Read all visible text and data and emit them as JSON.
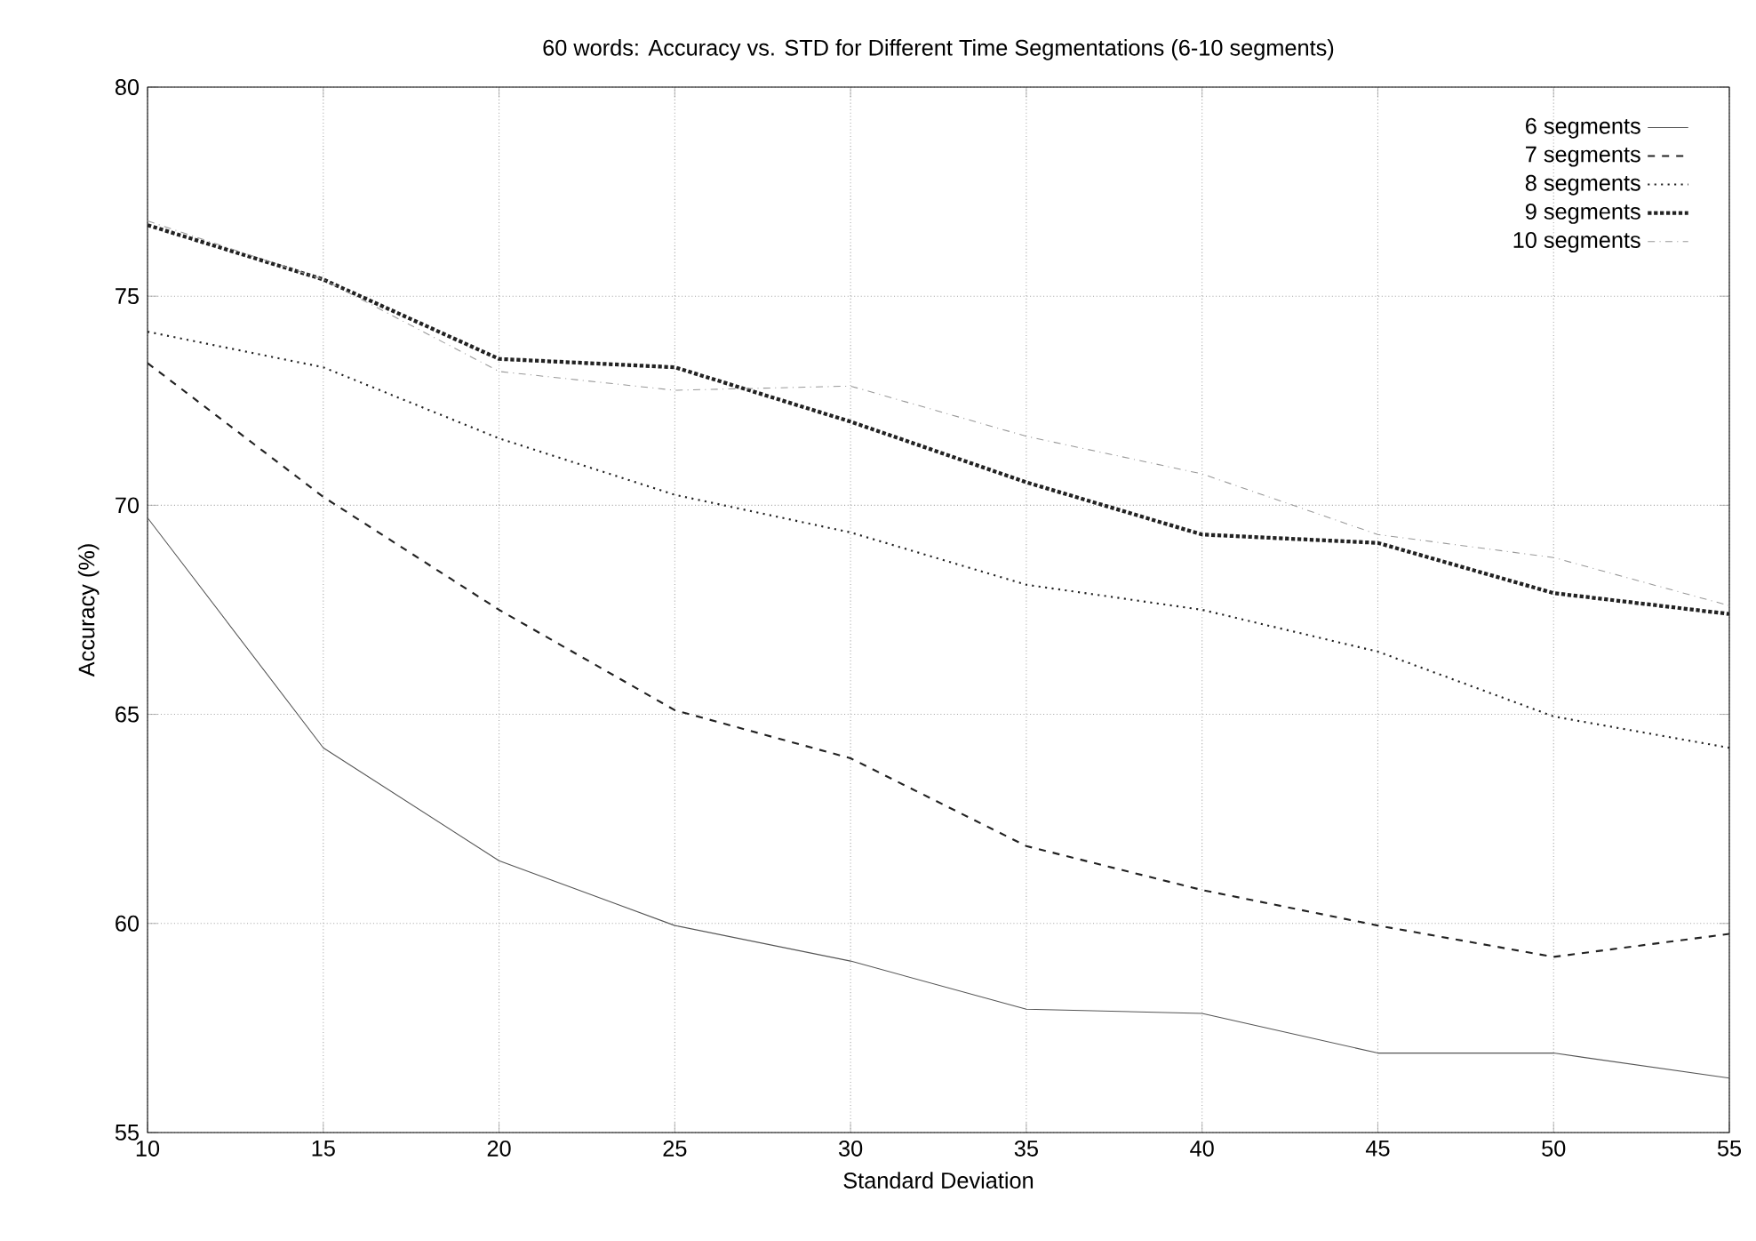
{
  "chart_data": {
    "type": "line",
    "title": "60 words: Accuracy vs. STD for Different Time Segmentations (6-10 segments)",
    "xlabel": "Standard Deviation",
    "ylabel": "Accuracy (%)",
    "x": [
      10,
      15,
      20,
      25,
      30,
      35,
      40,
      45,
      50,
      55
    ],
    "series": [
      {
        "name": "6 segments",
        "color": "#555555",
        "line_style": "solid",
        "values": [
          69.7,
          64.2,
          61.5,
          59.95,
          59.1,
          57.95,
          57.85,
          56.9,
          56.9,
          56.3
        ]
      },
      {
        "name": "7 segments",
        "color": "#222222",
        "line_style": "dashed",
        "values": [
          73.4,
          70.2,
          67.5,
          65.1,
          63.95,
          61.85,
          60.8,
          59.95,
          59.2,
          59.75
        ]
      },
      {
        "name": "8 segments",
        "color": "#222222",
        "line_style": "dotted",
        "values": [
          74.15,
          73.3,
          71.6,
          70.25,
          69.35,
          68.1,
          67.5,
          66.5,
          64.95,
          64.2
        ]
      },
      {
        "name": "9 segments",
        "color": "#222222",
        "line_style": "densely dotted",
        "values": [
          76.7,
          75.4,
          73.5,
          73.3,
          72.0,
          70.55,
          69.3,
          69.1,
          67.9,
          67.4
        ]
      },
      {
        "name": "10 segments",
        "color": "#999999",
        "line_style": "dashdot",
        "values": [
          76.8,
          75.4,
          73.2,
          72.75,
          72.85,
          71.65,
          70.75,
          69.3,
          68.75,
          67.6
        ]
      }
    ],
    "xlim": [
      10,
      55
    ],
    "ylim": [
      55,
      80
    ],
    "xticks": [
      10,
      15,
      20,
      25,
      30,
      35,
      40,
      45,
      50,
      55
    ],
    "yticks": [
      55,
      60,
      65,
      70,
      75,
      80
    ],
    "grid": true,
    "legend": "top right",
    "marker": "none"
  }
}
